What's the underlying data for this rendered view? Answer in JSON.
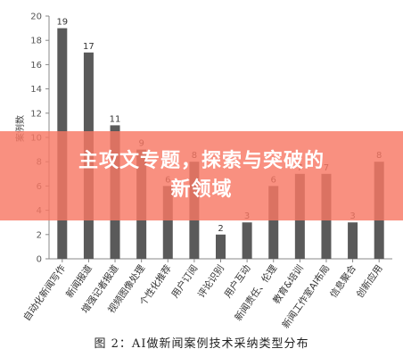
{
  "chart_data": {
    "type": "bar",
    "categories": [
      "自动化新闻写作",
      "新闻报道",
      "增强记者报道",
      "视频图像处理",
      "个性化推荐",
      "用户订阅",
      "评论识别",
      "用户互动",
      "新闻责任、伦理",
      "教育&培训",
      "新闻工作室AI布局",
      "信息聚合",
      "创新应用"
    ],
    "values": [
      19,
      17,
      11,
      9,
      6,
      8,
      2,
      3,
      6,
      7,
      7,
      3,
      8
    ],
    "ylabel": "案例数",
    "ylim": [
      0,
      20
    ],
    "yticks": [
      0,
      2,
      4,
      6,
      8,
      10,
      12,
      14,
      16,
      18,
      20
    ],
    "grid": false,
    "bar_color": "#5a5a5a"
  },
  "caption": "图 2：AI做新闻案例技术采纳类型分布",
  "banner": {
    "line1": "主攻文专题，探索与突破的",
    "line2": "新领域",
    "color": "#f87864"
  }
}
